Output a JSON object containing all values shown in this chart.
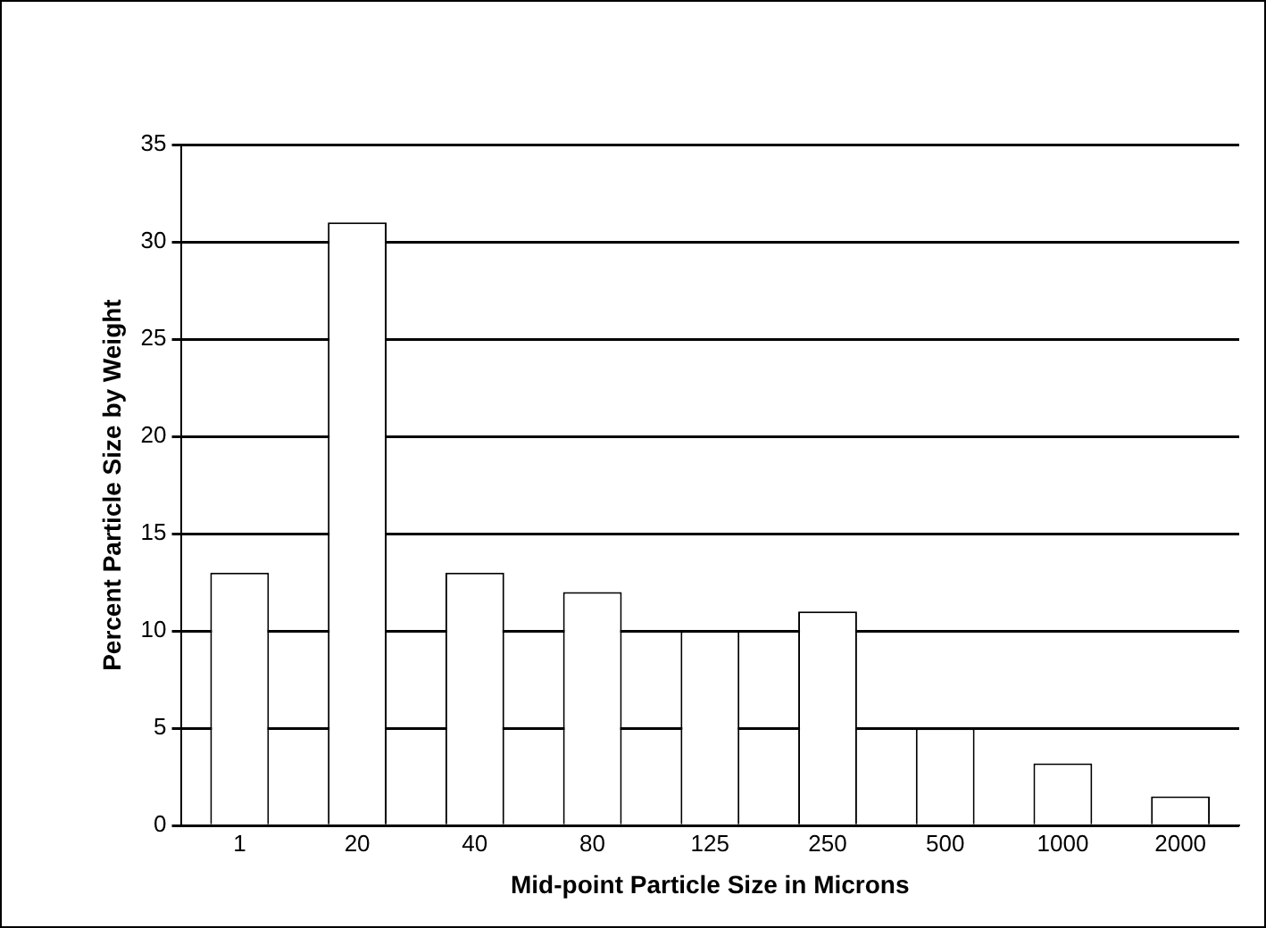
{
  "chart_data": {
    "type": "bar",
    "xlabel": "Mid-point Particle Size in Microns",
    "ylabel": "Percent Particle Size by Weight",
    "categories": [
      "1",
      "20",
      "40",
      "80",
      "125",
      "250",
      "500",
      "1000",
      "2000"
    ],
    "values": [
      13,
      31,
      13,
      12,
      10,
      11,
      5,
      3.2,
      1.5
    ],
    "color": "#ffffff",
    "ylim": [
      0,
      35
    ],
    "yticks": [
      0,
      5,
      10,
      15,
      20,
      25,
      30,
      35
    ],
    "grid": "y",
    "legend": false
  }
}
